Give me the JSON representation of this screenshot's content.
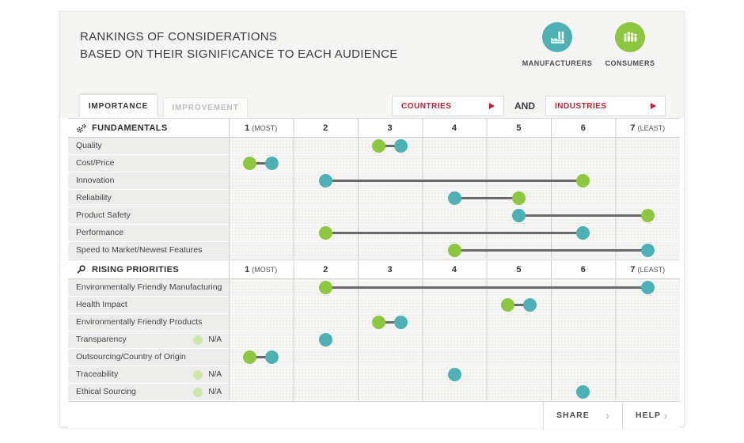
{
  "title_line1": "RANKINGS OF CONSIDERATIONS",
  "title_line2": "BASED ON THEIR SIGNIFICANCE TO EACH AUDIENCE",
  "audiences": [
    {
      "id": "manufacturers",
      "label": "MANUFACTURERS",
      "color": "#4db0b4",
      "icon": "factory-icon"
    },
    {
      "id": "consumers",
      "label": "CONSUMERS",
      "color": "#8dc63f",
      "icon": "people-icon"
    }
  ],
  "tabs": [
    {
      "label": "IMPORTANCE",
      "active": true
    },
    {
      "label": "IMPROVEMENT",
      "active": false
    }
  ],
  "filters": {
    "left_label": "COUNTRIES",
    "conjunction": "AND",
    "right_label": "INDUSTRIES"
  },
  "na_label": "N/A",
  "footer": {
    "share_label": "SHARE",
    "help_label": "HELP",
    "chevron": "›"
  },
  "colors": {
    "manufacturers": "#4db0b4",
    "consumers": "#8dc63f",
    "na_dot": "#cfe6a9",
    "accent_red": "#c01f30",
    "connector": "#6a6a6a"
  },
  "chart_data": {
    "type": "scatter",
    "subtype": "dumbbell-ranking",
    "title": "Rankings of considerations based on their significance to each audience",
    "x_axis": {
      "range": [
        1,
        7
      ],
      "ticks": [
        "1 (MOST)",
        "2",
        "3",
        "4",
        "5",
        "6",
        "7 (LEAST)"
      ],
      "grid": true
    },
    "series": [
      {
        "name": "Manufacturers",
        "color": "#4db0b4"
      },
      {
        "name": "Consumers",
        "color": "#8dc63f"
      }
    ],
    "sections": [
      {
        "title": "FUNDAMENTALS",
        "icon": "gears-icon",
        "rows": [
          {
            "label": "Quality",
            "manufacturers": 3,
            "consumers": 3
          },
          {
            "label": "Cost/Price",
            "manufacturers": 1,
            "consumers": 1
          },
          {
            "label": "Innovation",
            "manufacturers": 2,
            "consumers": 6
          },
          {
            "label": "Reliability",
            "manufacturers": 4,
            "consumers": 5
          },
          {
            "label": "Product Safety",
            "manufacturers": 5,
            "consumers": 7
          },
          {
            "label": "Performance",
            "manufacturers": 6,
            "consumers": 2
          },
          {
            "label": "Speed to Market/Newest Features",
            "manufacturers": 7,
            "consumers": 4
          }
        ]
      },
      {
        "title": "RISING PRIORITIES",
        "icon": "magnifier-icon",
        "rows": [
          {
            "label": "Environmentally Friendly Manufacturing",
            "manufacturers": 7,
            "consumers": 2
          },
          {
            "label": "Health Impact",
            "manufacturers": 5,
            "consumers": 5
          },
          {
            "label": "Environmentally Friendly Products",
            "manufacturers": 3,
            "consumers": 3
          },
          {
            "label": "Transparency",
            "manufacturers": 2,
            "consumers": "N/A"
          },
          {
            "label": "Outsourcing/Country of Origin",
            "manufacturers": 1,
            "consumers": 1
          },
          {
            "label": "Traceability",
            "manufacturers": 4,
            "consumers": "N/A"
          },
          {
            "label": "Ethical Sourcing",
            "manufacturers": 6,
            "consumers": "N/A"
          }
        ]
      }
    ]
  }
}
